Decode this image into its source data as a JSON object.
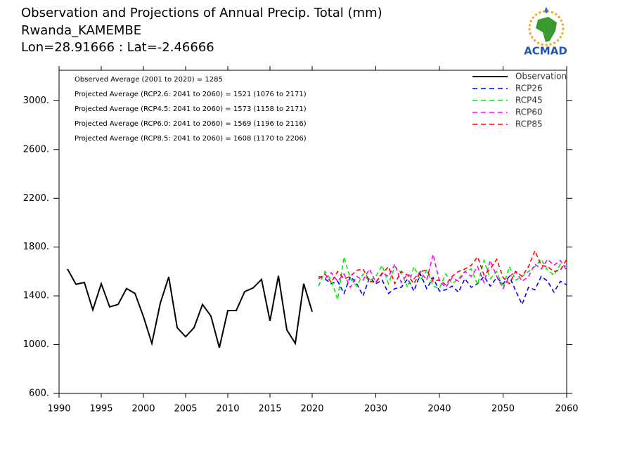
{
  "chart_data": {
    "type": "line",
    "title": "Observation and Projections of Annual Precip. Total (mm)",
    "subtitle": "Rwanda_KAMEMBE",
    "location": "Lon=28.91666 : Lat=-2.46666",
    "logo": "ACMAD",
    "annotations": [
      "Observed Average (2001 to 2020) = 1285",
      "Projected Average (RCP2.6: 2041 to 2060) = 1521 (1076 to 2171)",
      "Projected Average (RCP4.5: 2041 to 2060) = 1573 (1158 to 2171)",
      "Projected Average (RCP6.0: 2041 to 2060) = 1569 (1196 to 2116)",
      "Projected Average (RCP8.5: 2041 to 2060) = 1608 (1170 to 2206)"
    ],
    "xlim": [
      1990,
      2060
    ],
    "xticks": [
      1990,
      1995,
      2000,
      2005,
      2010,
      2015,
      2020,
      2030,
      2040,
      2050,
      2060
    ],
    "ylim": [
      600,
      3250
    ],
    "yticks": [
      {
        "value": 600,
        "label": "600."
      },
      {
        "value": 1000,
        "label": "1000."
      },
      {
        "value": 1400,
        "label": "1400."
      },
      {
        "value": 1800,
        "label": "1800."
      },
      {
        "value": 2200,
        "label": "2200."
      },
      {
        "value": 2600,
        "label": "2600."
      },
      {
        "value": 3000,
        "label": "3000."
      }
    ],
    "legend": "top-right",
    "series": [
      {
        "name": "Observation",
        "color": "#000000",
        "style": "solid",
        "x": [
          1991,
          1992,
          1993,
          1994,
          1995,
          1996,
          1997,
          1998,
          1999,
          2000,
          2001,
          2002,
          2003,
          2004,
          2005,
          2006,
          2007,
          2008,
          2009,
          2010,
          2011,
          2012,
          2013,
          2014,
          2015,
          2016,
          2017,
          2018,
          2019,
          2020
        ],
        "values": [
          1620,
          1495,
          1510,
          1285,
          1500,
          1310,
          1330,
          1460,
          1420,
          1230,
          1010,
          1340,
          1555,
          1140,
          1065,
          1140,
          1330,
          1235,
          975,
          1280,
          1280,
          1435,
          1465,
          1535,
          1195,
          1565,
          1120,
          1010,
          1500,
          1270
        ]
      },
      {
        "name": "RCP26",
        "color": "#0000ff",
        "style": "dashed",
        "x": [
          2021,
          2022,
          2023,
          2024,
          2025,
          2026,
          2027,
          2028,
          2029,
          2030,
          2031,
          2032,
          2033,
          2034,
          2035,
          2036,
          2037,
          2038,
          2039,
          2040,
          2041,
          2042,
          2043,
          2044,
          2045,
          2046,
          2047,
          2048,
          2049,
          2050,
          2051,
          2052,
          2053,
          2054,
          2055,
          2056,
          2057,
          2058,
          2059,
          2060
        ],
        "values": [
          1560,
          1540,
          1500,
          1520,
          1420,
          1560,
          1500,
          1400,
          1550,
          1500,
          1530,
          1420,
          1460,
          1470,
          1540,
          1440,
          1580,
          1460,
          1550,
          1440,
          1450,
          1480,
          1430,
          1540,
          1470,
          1500,
          1560,
          1480,
          1550,
          1500,
          1560,
          1440,
          1330,
          1470,
          1450,
          1560,
          1520,
          1430,
          1520,
          1490
        ]
      },
      {
        "name": "RCP45",
        "color": "#00ee00",
        "style": "dashed",
        "x": [
          2021,
          2022,
          2023,
          2024,
          2025,
          2026,
          2027,
          2028,
          2029,
          2030,
          2031,
          2032,
          2033,
          2034,
          2035,
          2036,
          2037,
          2038,
          2039,
          2040,
          2041,
          2042,
          2043,
          2044,
          2045,
          2046,
          2047,
          2048,
          2049,
          2050,
          2051,
          2052,
          2053,
          2054,
          2055,
          2056,
          2057,
          2058,
          2059,
          2060
        ],
        "values": [
          1480,
          1600,
          1530,
          1370,
          1720,
          1540,
          1480,
          1580,
          1520,
          1560,
          1650,
          1500,
          1640,
          1590,
          1470,
          1640,
          1530,
          1610,
          1480,
          1460,
          1580,
          1500,
          1540,
          1600,
          1620,
          1490,
          1690,
          1540,
          1600,
          1470,
          1640,
          1530,
          1560,
          1600,
          1640,
          1700,
          1610,
          1570,
          1660,
          1640
        ]
      },
      {
        "name": "RCP60",
        "color": "#ff00ff",
        "style": "dashed",
        "x": [
          2021,
          2022,
          2023,
          2024,
          2025,
          2026,
          2027,
          2028,
          2029,
          2030,
          2031,
          2032,
          2033,
          2034,
          2035,
          2036,
          2037,
          2038,
          2039,
          2040,
          2041,
          2042,
          2043,
          2044,
          2045,
          2046,
          2047,
          2048,
          2049,
          2050,
          2051,
          2052,
          2053,
          2054,
          2055,
          2056,
          2057,
          2058,
          2059,
          2060
        ],
        "values": [
          1560,
          1540,
          1590,
          1520,
          1580,
          1470,
          1560,
          1530,
          1620,
          1510,
          1590,
          1560,
          1660,
          1510,
          1580,
          1540,
          1600,
          1530,
          1740,
          1520,
          1470,
          1550,
          1520,
          1600,
          1560,
          1640,
          1510,
          1690,
          1560,
          1460,
          1560,
          1600,
          1520,
          1560,
          1660,
          1620,
          1700,
          1650,
          1690,
          1610
        ]
      },
      {
        "name": "RCP85",
        "color": "#ff0000",
        "style": "dashed",
        "x": [
          2021,
          2022,
          2023,
          2024,
          2025,
          2026,
          2027,
          2028,
          2029,
          2030,
          2031,
          2032,
          2033,
          2034,
          2035,
          2036,
          2037,
          2038,
          2039,
          2040,
          2041,
          2042,
          2043,
          2044,
          2045,
          2046,
          2047,
          2048,
          2049,
          2050,
          2051,
          2052,
          2053,
          2054,
          2055,
          2056,
          2057,
          2058,
          2059,
          2060
        ],
        "values": [
          1540,
          1580,
          1510,
          1600,
          1540,
          1560,
          1610,
          1620,
          1520,
          1510,
          1580,
          1640,
          1500,
          1600,
          1570,
          1500,
          1600,
          1610,
          1520,
          1530,
          1490,
          1560,
          1600,
          1620,
          1650,
          1720,
          1570,
          1620,
          1700,
          1550,
          1500,
          1600,
          1560,
          1640,
          1770,
          1650,
          1640,
          1600,
          1610,
          1700
        ]
      }
    ]
  }
}
